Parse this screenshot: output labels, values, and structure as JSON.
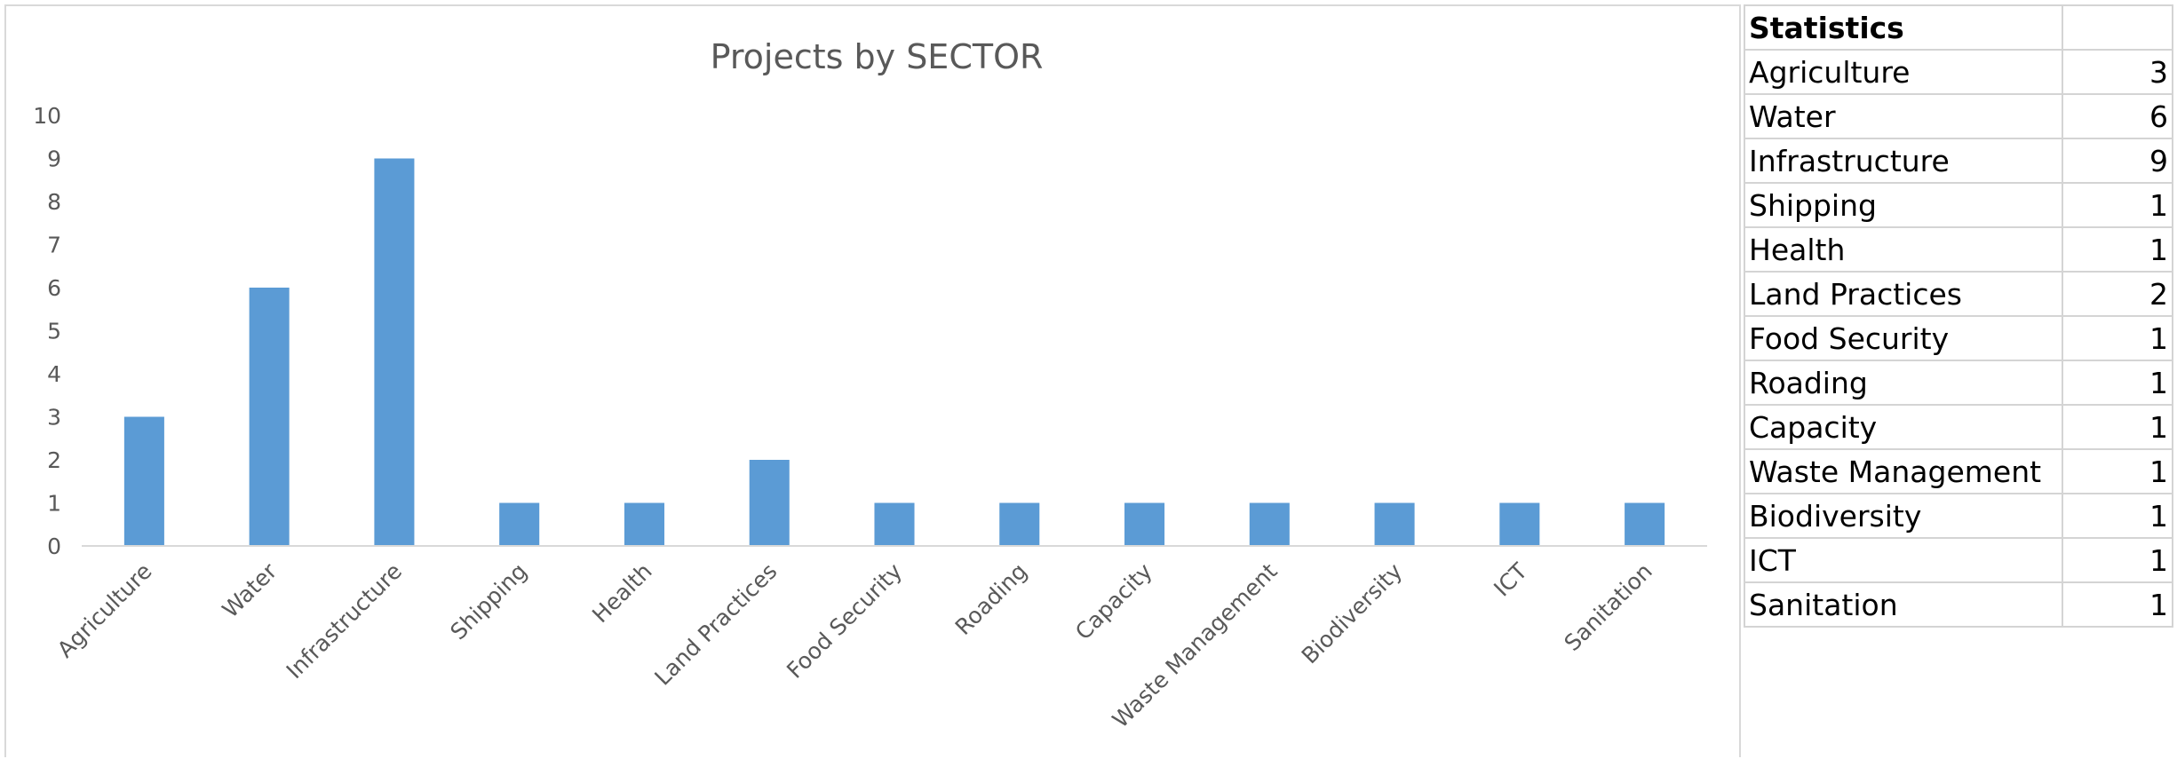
{
  "chart_data": {
    "type": "bar",
    "title": "Projects by SECTOR",
    "xlabel": "",
    "ylabel": "",
    "ylim": [
      0,
      10
    ],
    "yticks": [
      0,
      1,
      2,
      3,
      4,
      5,
      6,
      7,
      8,
      9,
      10
    ],
    "categories": [
      "Agriculture",
      "Water",
      "Infrastructure",
      "Shipping",
      "Health",
      "Land Practices",
      "Food Security",
      "Roading",
      "Capacity",
      "Waste Management",
      "Biodiversity",
      "ICT",
      "Sanitation"
    ],
    "values": [
      3,
      6,
      9,
      1,
      1,
      2,
      1,
      1,
      1,
      1,
      1,
      1,
      1
    ],
    "bar_color": "#5b9bd5",
    "grid": false,
    "legend": "none"
  },
  "table": {
    "header": "Statistics",
    "rows": [
      {
        "label": "Agriculture",
        "value": "3"
      },
      {
        "label": "Water",
        "value": "6"
      },
      {
        "label": "Infrastructure",
        "value": "9"
      },
      {
        "label": "Shipping",
        "value": "1"
      },
      {
        "label": "Health",
        "value": "1"
      },
      {
        "label": "Land Practices",
        "value": "2"
      },
      {
        "label": "Food Security",
        "value": "1"
      },
      {
        "label": "Roading",
        "value": "1"
      },
      {
        "label": "Capacity",
        "value": "1"
      },
      {
        "label": "Waste Management",
        "value": "1"
      },
      {
        "label": "Biodiversity",
        "value": "1"
      },
      {
        "label": "ICT",
        "value": "1"
      },
      {
        "label": "Sanitation",
        "value": "1"
      }
    ]
  }
}
